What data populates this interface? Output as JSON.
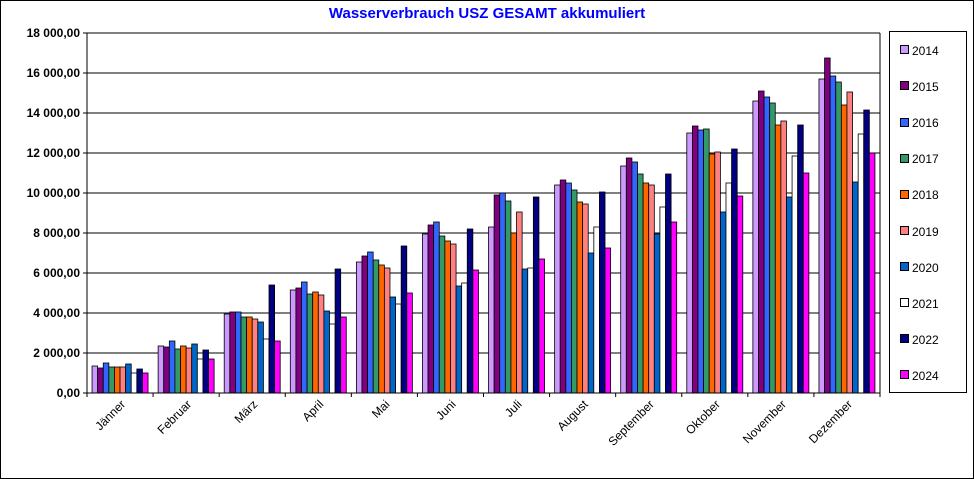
{
  "chart_data": {
    "type": "bar",
    "title": "Wasserverbrauch USZ GESAMT akkumuliert",
    "categories": [
      "Jänner",
      "Februar",
      "März",
      "April",
      "Mai",
      "Juni",
      "Juli",
      "August",
      "September",
      "Oktober",
      "November",
      "Dezember"
    ],
    "ylim": [
      0,
      18000
    ],
    "yticks": [
      0,
      2000,
      4000,
      6000,
      8000,
      10000,
      12000,
      14000,
      16000,
      18000
    ],
    "ytick_labels": [
      "0,00",
      "2 000,00",
      "4 000,00",
      "6 000,00",
      "8 000,00",
      "10 000,00",
      "12 000,00",
      "14 000,00",
      "16 000,00",
      "18 000,00"
    ],
    "grid": true,
    "legend_position": "right",
    "series": [
      {
        "name": "2014",
        "color": "#cc99ff",
        "values": [
          1350,
          2350,
          3950,
          5150,
          6550,
          7950,
          8300,
          10400,
          11350,
          13000,
          14600,
          15700
        ]
      },
      {
        "name": "2015",
        "color": "#800080",
        "values": [
          1250,
          2300,
          4050,
          5250,
          6850,
          8400,
          9900,
          10650,
          11750,
          13350,
          15100,
          16750
        ]
      },
      {
        "name": "2016",
        "color": "#3366ff",
        "values": [
          1500,
          2600,
          4050,
          5550,
          7050,
          8550,
          10000,
          10500,
          11550,
          13150,
          14800,
          15850
        ]
      },
      {
        "name": "2017",
        "color": "#339966",
        "values": [
          1300,
          2200,
          3800,
          4950,
          6650,
          7850,
          9600,
          10150,
          10950,
          13200,
          14500,
          15550
        ]
      },
      {
        "name": "2018",
        "color": "#ff6600",
        "values": [
          1300,
          2350,
          3800,
          5050,
          6400,
          7600,
          8000,
          9550,
          10500,
          11950,
          13400,
          14400
        ]
      },
      {
        "name": "2019",
        "color": "#ff8080",
        "values": [
          1300,
          2250,
          3700,
          4900,
          6250,
          7450,
          9050,
          9450,
          10400,
          12050,
          13600,
          15050
        ]
      },
      {
        "name": "2020",
        "color": "#0066cc",
        "values": [
          1450,
          2450,
          3550,
          4100,
          4800,
          5350,
          6200,
          7000,
          7950,
          9050,
          9800,
          10550
        ]
      },
      {
        "name": "2021",
        "color": "#ffffff",
        "values": [
          1000,
          1700,
          2700,
          3450,
          4450,
          5500,
          6250,
          8300,
          9300,
          10500,
          11850,
          12950
        ]
      },
      {
        "name": "2022",
        "color": "#000080",
        "values": [
          1200,
          2150,
          5400,
          6200,
          7350,
          8200,
          9800,
          10050,
          10950,
          12200,
          13400,
          14150
        ]
      },
      {
        "name": "2024",
        "color": "#ff00ff",
        "values": [
          1000,
          1700,
          2600,
          3800,
          5000,
          6150,
          6700,
          7250,
          8550,
          9850,
          11000,
          12000
        ]
      }
    ]
  }
}
